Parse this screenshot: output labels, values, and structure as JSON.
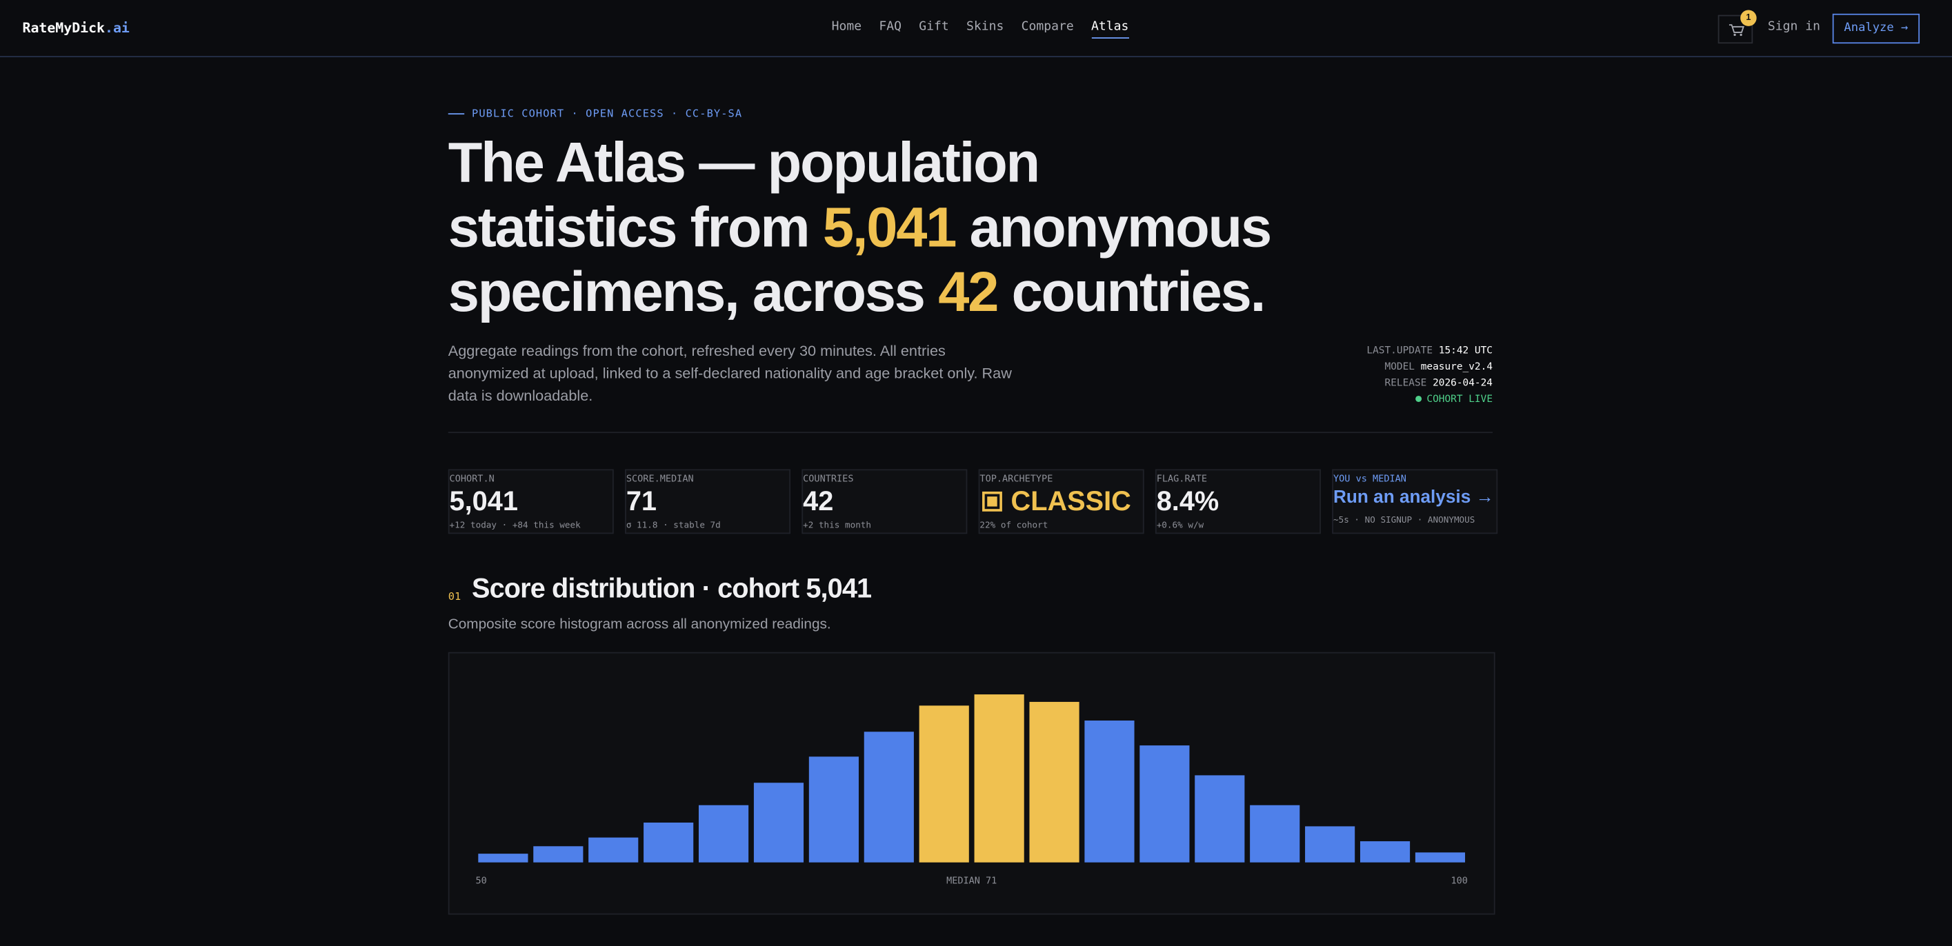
{
  "nav": {
    "brand": "RateMyDick",
    "brand_suffix": ".ai",
    "links": [
      "Home",
      "FAQ",
      "Gift",
      "Skins",
      "Compare",
      "Atlas"
    ],
    "cart_count": "1",
    "sign_in": "Sign in",
    "cta": "Analyze →"
  },
  "hero": {
    "eyebrow": "PUBLIC COHORT · OPEN ACCESS · CC-BY-SA",
    "title": {
      "line1": "The Atlas — population",
      "line2_a": "statistics from ",
      "line2_b": "5,041",
      "line2_c": " anonymous",
      "line3_a": "specimens, across ",
      "line3_b": "42",
      "line3_c": " countries."
    },
    "description": "Aggregate readings from the cohort, refreshed every 30 minutes. All entries anonymized at upload, linked to a self-declared nationality and age bracket only. Raw data is downloadable.",
    "meta": [
      [
        "LAST.UPDATE",
        "15:42 UTC"
      ],
      [
        "MODEL",
        "measure_v2.4"
      ],
      [
        "RELEASE",
        "2026-04-24"
      ]
    ],
    "status": "COHORT LIVE"
  },
  "stats": [
    {
      "label": "COHORT.N",
      "value": "5,041",
      "sub": "+12 today · +84 this week"
    },
    {
      "label": "SCORE.MEDIAN",
      "value": "71",
      "sub": "σ 11.8 · stable 7d"
    },
    {
      "label": "COUNTRIES",
      "value": "42",
      "sub": "+2 this month"
    },
    {
      "label": "TOP.ARCHETYPE",
      "value": "CLASSIC",
      "sub": "22% of cohort"
    },
    {
      "label": "FLAG.RATE",
      "value": "8.4%",
      "sub": "+0.6% w/w"
    },
    {
      "label": "YOU vs MEDIAN",
      "value": "Run an analysis →",
      "sub": "~5s · NO SIGNUP · ANONYMOUS"
    }
  ],
  "section": {
    "number": "01",
    "title": "Score distribution · cohort 5,041",
    "subtitle": "Composite score histogram across all anonymized readings."
  },
  "chart_data": {
    "type": "bar",
    "categories": [
      null,
      null,
      null,
      null,
      null,
      null,
      null,
      null,
      null,
      null,
      null,
      null,
      null,
      null,
      null,
      null,
      null,
      null
    ],
    "values": [
      7,
      13,
      20,
      32,
      46,
      64,
      85,
      105,
      126,
      135,
      129,
      114,
      94,
      70,
      46,
      29,
      17,
      8
    ],
    "colors": [
      "#4f80ea",
      "#4f80ea",
      "#4f80ea",
      "#4f80ea",
      "#4f80ea",
      "#4f80ea",
      "#4f80ea",
      "#4f80ea",
      "#f0c150",
      "#f0c150",
      "#f0c150",
      "#4f80ea",
      "#4f80ea",
      "#4f80ea",
      "#4f80ea",
      "#4f80ea",
      "#4f80ea",
      "#4f80ea"
    ],
    "axis_labels": {
      "left": "50",
      "center": "MEDIAN 71",
      "right": "100"
    }
  }
}
